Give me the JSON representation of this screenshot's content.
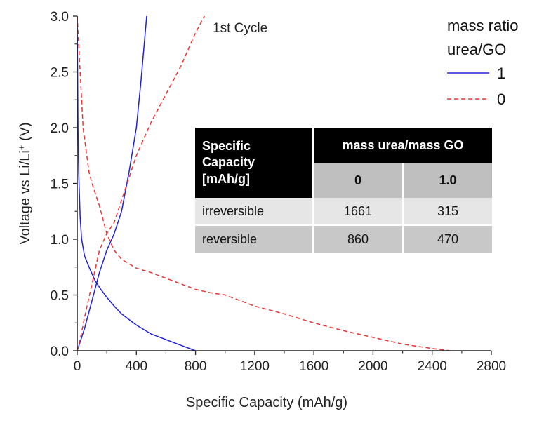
{
  "chart_data": {
    "type": "line",
    "xlabel": "Specific Capacity (mAh/g)",
    "ylabel_main": "Voltage vs Li/Li",
    "ylabel_sup": "+",
    "ylabel_unit": " (V)",
    "xlim": [
      0,
      2800
    ],
    "ylim": [
      0,
      3.0
    ],
    "xticks": [
      0,
      400,
      800,
      1200,
      1600,
      2000,
      2400,
      2800
    ],
    "yticks": [
      "0.0",
      "0.5",
      "1.0",
      "1.5",
      "2.0",
      "2.5",
      "3.0"
    ],
    "annotation": "1st Cycle",
    "legend": {
      "title_line1": "mass ratio",
      "title_line2": "urea/GO",
      "placement": "top-right"
    },
    "series": [
      {
        "name": "1",
        "color": "#2222dd",
        "style": "solid",
        "curves": [
          {
            "label": "discharge",
            "x": [
              0,
              5,
              10,
              20,
              30,
              50,
              80,
              120,
              160,
              200,
              250,
              300,
              350,
              400,
              500,
              600,
              700,
              800
            ],
            "y": [
              3.0,
              2.0,
              1.6,
              1.2,
              1.0,
              0.85,
              0.75,
              0.63,
              0.55,
              0.48,
              0.4,
              0.33,
              0.28,
              0.23,
              0.15,
              0.1,
              0.05,
              0.0
            ]
          },
          {
            "label": "charge",
            "x": [
              0,
              20,
              50,
              100,
              150,
              200,
              250,
              300,
              350,
              400,
              430,
              450,
              470
            ],
            "y": [
              0.0,
              0.08,
              0.2,
              0.45,
              0.7,
              0.9,
              1.05,
              1.25,
              1.6,
              2.0,
              2.4,
              2.7,
              3.0
            ]
          }
        ]
      },
      {
        "name": "0",
        "color": "#ee3333",
        "style": "dashed",
        "curves": [
          {
            "label": "discharge",
            "x": [
              0,
              20,
              40,
              60,
              80,
              100,
              150,
              200,
              250,
              300,
              350,
              400,
              500,
              600,
              700,
              800,
              900,
              1000,
              1100,
              1200,
              1400,
              1600,
              1800,
              2000,
              2200,
              2400,
              2520
            ],
            "y": [
              3.0,
              2.5,
              2.0,
              1.8,
              1.6,
              1.5,
              1.3,
              1.05,
              0.9,
              0.82,
              0.78,
              0.74,
              0.7,
              0.65,
              0.6,
              0.55,
              0.52,
              0.5,
              0.45,
              0.4,
              0.33,
              0.25,
              0.18,
              0.12,
              0.06,
              0.02,
              0.0
            ]
          },
          {
            "label": "charge",
            "x": [
              0,
              20,
              50,
              100,
              150,
              200,
              250,
              300,
              350,
              400,
              450,
              500,
              600,
              700,
              800,
              860
            ],
            "y": [
              0.0,
              0.1,
              0.3,
              0.6,
              0.9,
              1.05,
              1.15,
              1.35,
              1.55,
              1.75,
              1.9,
              2.05,
              2.3,
              2.55,
              2.85,
              3.0
            ]
          }
        ]
      }
    ],
    "inset_table": {
      "header_left": [
        "Specific",
        "Capacity",
        "[mAh/g]"
      ],
      "header_group": "mass urea/mass GO",
      "columns": [
        "0",
        "1.0"
      ],
      "rows": [
        {
          "label": "irreversible",
          "values": [
            "1661",
            "315"
          ]
        },
        {
          "label": "reversible",
          "values": [
            "860",
            "470"
          ]
        }
      ]
    }
  }
}
